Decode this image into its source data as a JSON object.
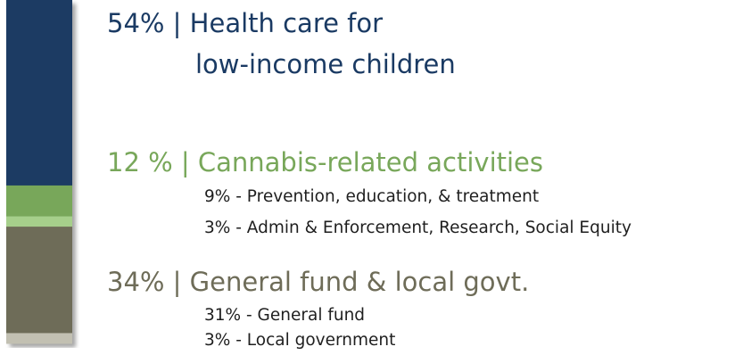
{
  "chart_data": {
    "type": "bar",
    "orientation": "vertical-stacked",
    "title": "",
    "xlabel": "",
    "ylabel": "",
    "ylim": [
      0,
      100
    ],
    "grid": false,
    "legend": "none",
    "segments": [
      {
        "value": 54,
        "color": "#1a3a63"
      },
      {
        "value": 9,
        "color": "#78a75a"
      },
      {
        "value": 3,
        "color": "#a6cf8b"
      },
      {
        "value": 31,
        "color": "#6e6c58"
      },
      {
        "value": 3,
        "color": "#c2c0b2"
      }
    ],
    "annotations": [
      {
        "total_label": "54% | Health care for",
        "total_label_line2": "low-income children"
      },
      {
        "total_label": "12 % | Cannabis-related activities",
        "items": [
          "9% - Prevention, education, & treatment",
          "3% - Admin & Enforcement, Research, Social Equity"
        ]
      },
      {
        "total_label": "34% | General fund & local govt.",
        "items": [
          "31% - General fund",
          "3% - Local government"
        ]
      }
    ]
  },
  "colors": {
    "health": "#1a3a63",
    "cannabis": "#78a75a",
    "general": "#6e6c58"
  }
}
